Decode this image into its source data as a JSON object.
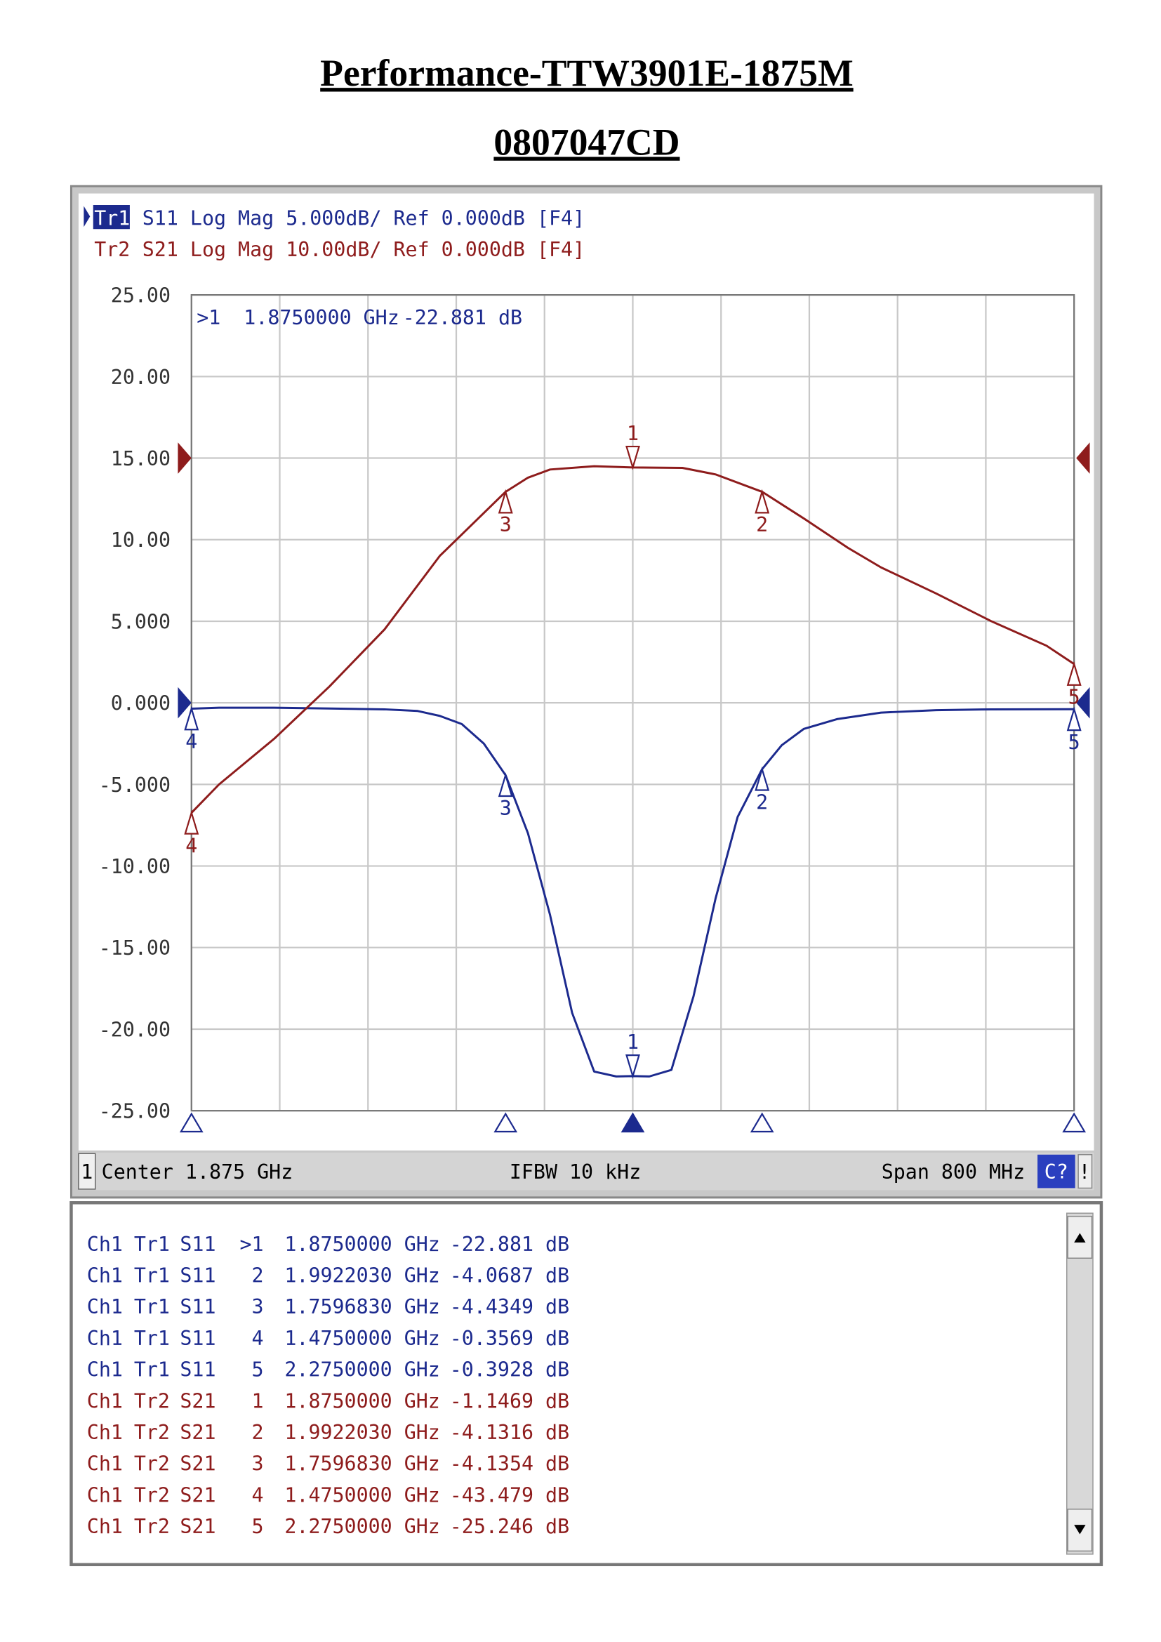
{
  "header": {
    "title": "Performance-TTW3901E-1875M",
    "subtitle": "0807047CD"
  },
  "chart_data": {
    "type": "line",
    "trace_info": [
      {
        "tag": "Tr1",
        "text": "S11 Log Mag 5.000dB/ Ref 0.000dB [F4]"
      },
      {
        "tag": "Tr2",
        "text": "S21 Log Mag 10.00dB/ Ref 0.000dB [F4]"
      }
    ],
    "active_marker": {
      "id": ">1",
      "stimulus": "1.8750000 GHz",
      "response": "-22.881 dB"
    },
    "xlim": [
      1.475,
      2.275
    ],
    "ylim": [
      -25,
      25
    ],
    "yticks": [
      {
        "value": 25,
        "label": "25.00"
      },
      {
        "value": 20,
        "label": "20.00"
      },
      {
        "value": 15,
        "label": "15.00"
      },
      {
        "value": 10,
        "label": "10.00"
      },
      {
        "value": 5,
        "label": "5.000"
      },
      {
        "value": 0,
        "label": "0.000"
      },
      {
        "value": -5,
        "label": "-5.000"
      },
      {
        "value": -10,
        "label": "-10.00"
      },
      {
        "value": -15,
        "label": "-15.00"
      },
      {
        "value": -20,
        "label": "-20.00"
      },
      {
        "value": -25,
        "label": "-25.00"
      }
    ],
    "y2lim": [
      -80,
      20
    ],
    "grid": true,
    "series": [
      {
        "name": "Tr1",
        "color": "#1c2a8e",
        "x": [
          1.475,
          1.5,
          1.55,
          1.6,
          1.65,
          1.68,
          1.7,
          1.72,
          1.74,
          1.759683,
          1.78,
          1.8,
          1.82,
          1.84,
          1.86,
          1.875,
          1.89,
          1.91,
          1.93,
          1.95,
          1.97,
          1.992203,
          2.01,
          2.03,
          2.06,
          2.1,
          2.15,
          2.2,
          2.275
        ],
        "values": [
          -0.3569,
          -0.3,
          -0.3,
          -0.35,
          -0.4,
          -0.5,
          -0.8,
          -1.3,
          -2.5,
          -4.4349,
          -8,
          -13,
          -19,
          -22.6,
          -22.9,
          -22.881,
          -22.9,
          -22.5,
          -18,
          -12,
          -7,
          -4.0687,
          -2.6,
          -1.6,
          -1.0,
          -0.6,
          -0.45,
          -0.4,
          -0.3928
        ],
        "markers": {
          "labels": [
            "1",
            "2",
            "3",
            "4",
            "5"
          ],
          "x": [
            1.875,
            1.992203,
            1.759683,
            1.475,
            2.275
          ],
          "values": [
            -22.881,
            -4.0687,
            -4.4349,
            -0.3569,
            -0.3928
          ]
        }
      },
      {
        "name": "Tr2",
        "color": "#8e1c1c",
        "axis": "y2",
        "x": [
          1.475,
          1.5,
          1.55,
          1.6,
          1.65,
          1.7,
          1.759683,
          1.78,
          1.8,
          1.84,
          1.875,
          1.92,
          1.95,
          1.992203,
          2.03,
          2.07,
          2.1,
          2.15,
          2.2,
          2.25,
          2.275
        ],
        "values": [
          -43.479,
          -40,
          -34.4,
          -28,
          -21,
          -12,
          -4.1354,
          -2.4,
          -1.4,
          -1.0,
          -1.1469,
          -1.2,
          -2,
          -4.1316,
          -7.4,
          -11,
          -13.4,
          -16.6,
          -20,
          -23,
          -25.246
        ],
        "markers": {
          "labels": [
            "1",
            "2",
            "3",
            "4",
            "5"
          ],
          "x": [
            1.875,
            1.992203,
            1.759683,
            1.475,
            2.275
          ],
          "values": [
            -1.1469,
            -4.1316,
            -4.1354,
            -43.479,
            -25.246
          ]
        }
      }
    ],
    "status_bar": {
      "channel": "1",
      "center": "Center 1.875 GHz",
      "ifbw": "IFBW 10 kHz",
      "span": "Span 800 MHz",
      "cal": "C?",
      "flag": "!"
    }
  },
  "marker_table": {
    "rows": [
      [
        "Ch1",
        "Tr1",
        "S11",
        ">1",
        "1.8750000 GHz",
        "-22.881 dB"
      ],
      [
        "Ch1",
        "Tr1",
        "S11",
        "2",
        "1.9922030 GHz",
        "-4.0687 dB"
      ],
      [
        "Ch1",
        "Tr1",
        "S11",
        "3",
        "1.7596830 GHz",
        "-4.4349 dB"
      ],
      [
        "Ch1",
        "Tr1",
        "S11",
        "4",
        "1.4750000 GHz",
        "-0.3569 dB"
      ],
      [
        "Ch1",
        "Tr1",
        "S11",
        "5",
        "2.2750000 GHz",
        "-0.3928 dB"
      ],
      [
        "Ch1",
        "Tr2",
        "S21",
        "1",
        "1.8750000 GHz",
        "-1.1469 dB"
      ],
      [
        "Ch1",
        "Tr2",
        "S21",
        "2",
        "1.9922030 GHz",
        "-4.1316 dB"
      ],
      [
        "Ch1",
        "Tr2",
        "S21",
        "3",
        "1.7596830 GHz",
        "-4.1354 dB"
      ],
      [
        "Ch1",
        "Tr2",
        "S21",
        "4",
        "1.4750000 GHz",
        "-43.479 dB"
      ],
      [
        "Ch1",
        "Tr2",
        "S21",
        "5",
        "2.2750000 GHz",
        "-25.246 dB"
      ]
    ]
  }
}
